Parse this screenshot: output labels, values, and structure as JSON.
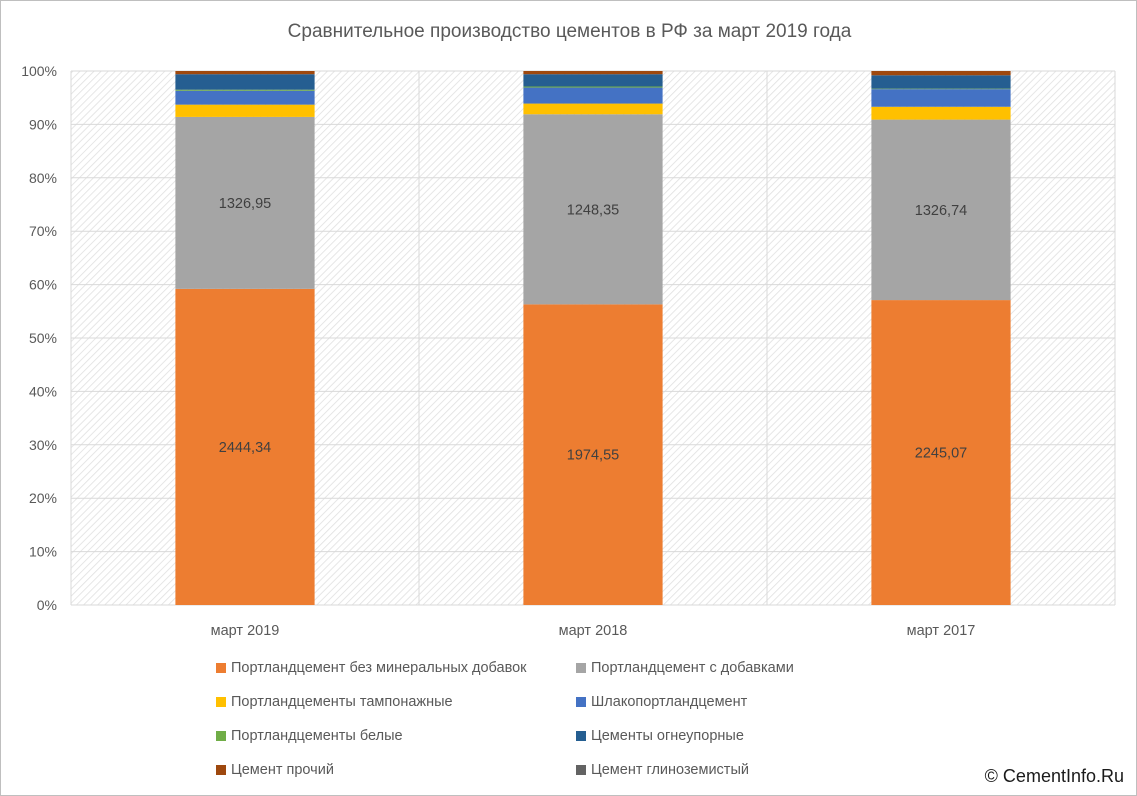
{
  "chart_data": {
    "type": "bar",
    "stacked": "percent",
    "title": "Сравнительное производство цементов в РФ за март 2019 года",
    "categories": [
      "март 2019",
      "март 2018",
      "март 2017"
    ],
    "y_ticks": [
      "0%",
      "10%",
      "20%",
      "30%",
      "40%",
      "50%",
      "60%",
      "70%",
      "80%",
      "90%",
      "100%"
    ],
    "ylim": [
      0,
      100
    ],
    "grid": true,
    "legend_position": "bottom",
    "series": [
      {
        "name": "Портландцемент без минеральных добавок",
        "color": "#ED7D31",
        "percent": [
          59.2,
          56.3,
          57.1
        ],
        "labels": [
          "2444,34",
          "1974,55",
          "2245,07"
        ]
      },
      {
        "name": "Портландцемент с добавками",
        "color": "#A5A5A5",
        "percent": [
          32.2,
          35.6,
          33.8
        ],
        "labels": [
          "1326,95",
          "1248,35",
          "1326,74"
        ]
      },
      {
        "name": "Портландцементы тампонажные",
        "color": "#FFC000",
        "percent": [
          2.3,
          2.0,
          2.4
        ],
        "labels": [
          "",
          "",
          ""
        ]
      },
      {
        "name": "Шлакопортландцемент",
        "color": "#4472C4",
        "percent": [
          2.6,
          3.0,
          3.3
        ],
        "labels": [
          "",
          "",
          ""
        ]
      },
      {
        "name": "Портландцементы белые",
        "color": "#70AD47",
        "percent": [
          0.2,
          0.2,
          0.1
        ],
        "labels": [
          "",
          "",
          ""
        ]
      },
      {
        "name": "Цементы огнеупорные",
        "color": "#255E91",
        "percent": [
          2.9,
          2.3,
          2.5
        ],
        "labels": [
          "",
          "",
          ""
        ]
      },
      {
        "name": "Цемент прочий",
        "color": "#9E480E",
        "percent": [
          0.6,
          0.6,
          0.8
        ],
        "labels": [
          "",
          "",
          ""
        ]
      },
      {
        "name": "Цемент глиноземистый",
        "color": "#636363",
        "percent": [
          0.0,
          0.0,
          0.0
        ],
        "labels": [
          "",
          "",
          ""
        ]
      }
    ]
  },
  "watermark": "© CementInfo.Ru"
}
